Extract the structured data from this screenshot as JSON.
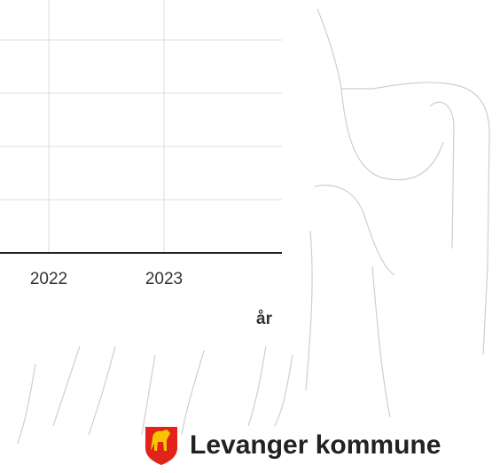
{
  "chart_data": {
    "type": "line",
    "categories": [
      "2022",
      "2023"
    ],
    "xlabel": "år",
    "grid": true
  },
  "footer": {
    "logo_text": "Levanger kommune"
  }
}
